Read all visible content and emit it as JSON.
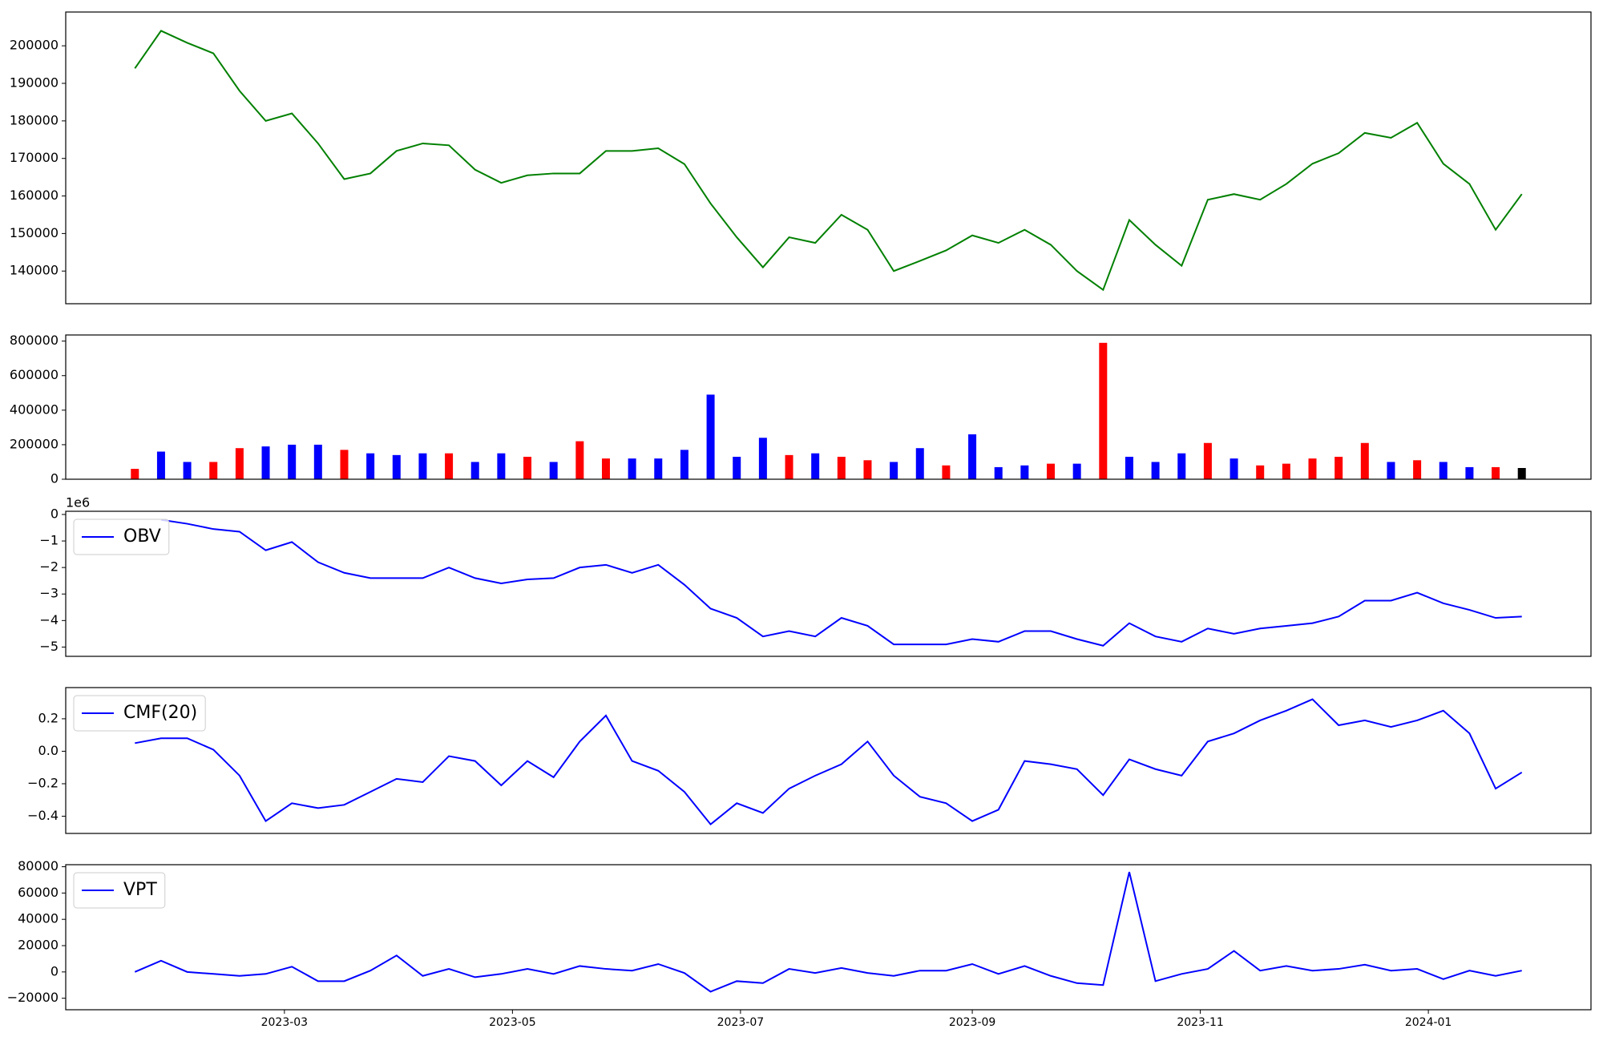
{
  "chart_data": [
    {
      "type": "line",
      "x": [
        19,
        26,
        33,
        40,
        47,
        54,
        61,
        68,
        75,
        82,
        89,
        96,
        103,
        110,
        117,
        124,
        131,
        138,
        145,
        152,
        159,
        166,
        173,
        180,
        187,
        194,
        201,
        208,
        215,
        222,
        229,
        236,
        243,
        250,
        257,
        264,
        271,
        278,
        285,
        292,
        299,
        306,
        313,
        320,
        327,
        334,
        341,
        348,
        355,
        362,
        369,
        376,
        383,
        390
      ],
      "values": [
        194000,
        204000,
        200800,
        198000,
        188000,
        180000,
        182000,
        174000,
        164500,
        166000,
        172000,
        174000,
        173500,
        167000,
        163500,
        165500,
        166000,
        166000,
        172000,
        172000,
        172700,
        168500,
        158000,
        149000,
        141000,
        149000,
        147500,
        155000,
        151000,
        140000,
        142700,
        145500,
        149500,
        147500,
        151000,
        147000,
        140000,
        135000,
        153600,
        147000,
        141400,
        159000,
        160500,
        159000,
        163200,
        168600,
        171400,
        176800,
        175500,
        179500,
        168600,
        163200,
        151000,
        160500
      ],
      "color": "#008000",
      "xlim": [
        0.5,
        408.5
      ],
      "ylim": [
        131300,
        209000
      ],
      "yticks": [
        140000,
        150000,
        160000,
        170000,
        180000,
        190000,
        200000
      ]
    },
    {
      "type": "bar",
      "x": [
        19,
        26,
        33,
        40,
        47,
        54,
        61,
        68,
        75,
        82,
        89,
        96,
        103,
        110,
        117,
        124,
        131,
        138,
        145,
        152,
        159,
        166,
        173,
        180,
        187,
        194,
        201,
        208,
        215,
        222,
        229,
        236,
        243,
        250,
        257,
        264,
        271,
        278,
        285,
        292,
        299,
        306,
        313,
        320,
        327,
        334,
        341,
        348,
        355,
        362,
        369,
        376,
        383,
        390
      ],
      "values": [
        60000,
        160000,
        100000,
        100000,
        180000,
        190000,
        200000,
        200000,
        170000,
        150000,
        140000,
        150000,
        150000,
        100000,
        150000,
        130000,
        100000,
        220000,
        120000,
        120000,
        120000,
        170000,
        490000,
        130000,
        240000,
        140000,
        150000,
        130000,
        110000,
        100000,
        180000,
        80000,
        260000,
        70000,
        80000,
        90000,
        90000,
        790000,
        130000,
        100000,
        150000,
        210000,
        120000,
        80000,
        90000,
        120000,
        130000,
        210000,
        100000,
        110000,
        100000,
        70000,
        70000,
        65000
      ],
      "colors": [
        "#ff0000",
        "#0000ff",
        "#0000ff",
        "#ff0000",
        "#ff0000",
        "#0000ff",
        "#0000ff",
        "#0000ff",
        "#ff0000",
        "#0000ff",
        "#0000ff",
        "#0000ff",
        "#ff0000",
        "#0000ff",
        "#0000ff",
        "#ff0000",
        "#0000ff",
        "#ff0000",
        "#ff0000",
        "#0000ff",
        "#0000ff",
        "#0000ff",
        "#0000ff",
        "#0000ff",
        "#0000ff",
        "#ff0000",
        "#0000ff",
        "#ff0000",
        "#ff0000",
        "#0000ff",
        "#0000ff",
        "#ff0000",
        "#0000ff",
        "#0000ff",
        "#0000ff",
        "#ff0000",
        "#0000ff",
        "#ff0000",
        "#0000ff",
        "#0000ff",
        "#0000ff",
        "#ff0000",
        "#0000ff",
        "#ff0000",
        "#ff0000",
        "#ff0000",
        "#ff0000",
        "#ff0000",
        "#0000ff",
        "#ff0000",
        "#0000ff",
        "#0000ff",
        "#ff0000",
        "#000000"
      ],
      "xlim": [
        0.5,
        408.5
      ],
      "ylim": [
        0,
        835500
      ],
      "yticks": [
        0,
        200000,
        400000,
        600000,
        800000
      ]
    },
    {
      "type": "line",
      "x": [
        19,
        26,
        33,
        40,
        47,
        54,
        61,
        68,
        75,
        82,
        89,
        96,
        103,
        110,
        117,
        124,
        131,
        138,
        145,
        152,
        159,
        166,
        173,
        180,
        187,
        194,
        201,
        208,
        215,
        222,
        229,
        236,
        243,
        250,
        257,
        264,
        271,
        278,
        285,
        292,
        299,
        306,
        313,
        320,
        327,
        334,
        341,
        348,
        355,
        362,
        369,
        376,
        383,
        390
      ],
      "series": [
        {
          "name": "OBV",
          "color": "#0000ff",
          "values": [
            null,
            -0.2,
            -0.35,
            -0.55,
            -0.65,
            -1.35,
            -1.04,
            -1.8,
            -2.2,
            -2.4,
            -2.4,
            -2.4,
            -2.0,
            -2.4,
            -2.6,
            -2.45,
            -2.4,
            -2.0,
            -1.9,
            -2.2,
            -1.9,
            -2.65,
            -3.55,
            -3.9,
            -4.6,
            -4.4,
            -4.6,
            -3.9,
            -4.2,
            -4.9,
            -4.9,
            -4.9,
            -4.7,
            -4.8,
            -4.4,
            -4.4,
            -4.7,
            -4.95,
            -4.1,
            -4.6,
            -4.8,
            -4.3,
            -4.5,
            -4.3,
            -4.2,
            -4.1,
            -3.85,
            -3.25,
            -3.25,
            -2.95,
            -3.35,
            -3.6,
            -3.9,
            -3.85
          ]
        }
      ],
      "xlim": [
        0.5,
        408.5
      ],
      "ylim": [
        -5.35,
        0.12
      ],
      "yticks": [
        {
          "value": -5,
          "label": "−5"
        },
        {
          "value": -4,
          "label": "−4"
        },
        {
          "value": -3,
          "label": "−3"
        },
        {
          "value": -2,
          "label": "−2"
        },
        {
          "value": -1,
          "label": "−1"
        },
        0
      ],
      "y_offset_label": "1e6",
      "legend": "upper left"
    },
    {
      "type": "line",
      "x": [
        19,
        26,
        33,
        40,
        47,
        54,
        61,
        68,
        75,
        82,
        89,
        96,
        103,
        110,
        117,
        124,
        131,
        138,
        145,
        152,
        159,
        166,
        173,
        180,
        187,
        194,
        201,
        208,
        215,
        222,
        229,
        236,
        243,
        250,
        257,
        264,
        271,
        278,
        285,
        292,
        299,
        306,
        313,
        320,
        327,
        334,
        341,
        348,
        355,
        362,
        369,
        376,
        383,
        390
      ],
      "series": [
        {
          "name": "CMF(20)",
          "color": "#0000ff",
          "values": [
            0.05,
            0.08,
            0.08,
            0.01,
            -0.15,
            -0.43,
            -0.32,
            -0.35,
            -0.33,
            -0.25,
            -0.17,
            -0.19,
            -0.03,
            -0.06,
            -0.21,
            -0.06,
            -0.16,
            0.06,
            0.22,
            -0.06,
            -0.12,
            -0.25,
            -0.45,
            -0.32,
            -0.38,
            -0.23,
            -0.15,
            -0.08,
            0.06,
            -0.15,
            -0.28,
            -0.32,
            -0.43,
            -0.36,
            -0.06,
            -0.08,
            -0.11,
            -0.27,
            -0.05,
            -0.11,
            -0.15,
            0.06,
            0.11,
            0.19,
            0.25,
            0.32,
            0.16,
            0.19,
            0.15,
            0.19,
            0.25,
            0.11,
            -0.23,
            -0.13
          ]
        }
      ],
      "xlim": [
        0.5,
        408.5
      ],
      "ylim": [
        -0.506,
        0.392
      ],
      "yticks": [
        {
          "value": -0.4,
          "label": "−0.4"
        },
        {
          "value": -0.2,
          "label": "−0.2"
        },
        {
          "value": 0,
          "label": "0.0"
        },
        0.2
      ],
      "legend": "upper left"
    },
    {
      "type": "line",
      "x": [
        19,
        26,
        33,
        40,
        47,
        54,
        61,
        68,
        75,
        82,
        89,
        96,
        103,
        110,
        117,
        124,
        131,
        138,
        145,
        152,
        159,
        166,
        173,
        180,
        187,
        194,
        201,
        208,
        215,
        222,
        229,
        236,
        243,
        250,
        257,
        264,
        271,
        278,
        285,
        292,
        299,
        306,
        313,
        320,
        327,
        334,
        341,
        348,
        355,
        362,
        369,
        376,
        383,
        390
      ],
      "series": [
        {
          "name": "VPT",
          "color": "#0000ff",
          "values": [
            0,
            8500,
            0,
            -1500,
            -3000,
            -1500,
            4000,
            -7000,
            -7000,
            1000,
            12500,
            -3000,
            2300,
            -4000,
            -1500,
            2300,
            -1500,
            4500,
            2300,
            1000,
            6000,
            -800,
            -15000,
            -7000,
            -8500,
            2300,
            -800,
            3000,
            -800,
            -3000,
            1000,
            1000,
            6000,
            -1500,
            4500,
            -3000,
            -8500,
            -10000,
            76000,
            -7000,
            -1500,
            2300,
            16000,
            1000,
            4500,
            1000,
            2300,
            5500,
            1000,
            2300,
            -5500,
            1000,
            -3000,
            1000
          ]
        }
      ],
      "xlim": [
        0.5,
        408.5
      ],
      "ylim": [
        -28740,
        81550
      ],
      "yticks": [
        {
          "value": -20000,
          "label": "−20000"
        },
        0,
        20000,
        40000,
        60000,
        80000
      ],
      "xticks": [
        {
          "value": 59,
          "label": "2023-03"
        },
        {
          "value": 120,
          "label": "2023-05"
        },
        {
          "value": 181,
          "label": "2023-07"
        },
        {
          "value": 243,
          "label": "2023-09"
        },
        {
          "value": 304,
          "label": "2023-11"
        },
        {
          "value": 365,
          "label": "2024-01"
        }
      ],
      "legend": "upper left"
    }
  ]
}
